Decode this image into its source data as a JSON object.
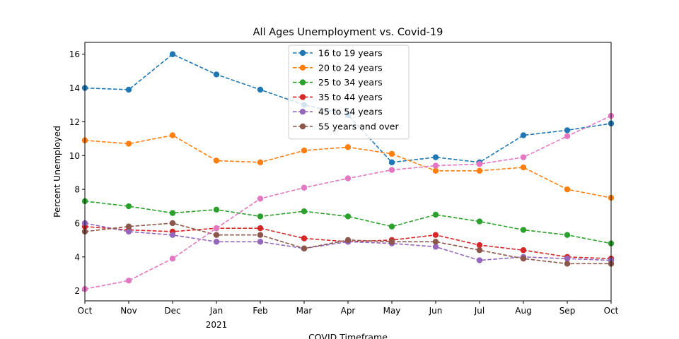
{
  "chart_data": {
    "type": "line",
    "title": "All Ages Unemployment vs. Covid-19",
    "xlabel": "COVID Timeframe",
    "ylabel": "Percent Unemployed",
    "x": [
      "Oct",
      "Nov",
      "Dec",
      "Jan",
      "Feb",
      "Mar",
      "Apr",
      "May",
      "Jun",
      "Jul",
      "Aug",
      "Sep",
      "Oct"
    ],
    "x_sublabels": {
      "3": "2021"
    },
    "yticks": [
      2,
      4,
      6,
      8,
      10,
      12,
      14,
      16
    ],
    "ylim": [
      1.4,
      16.7
    ],
    "grid": false,
    "legend_position": "top-center",
    "series": [
      {
        "name": "16 to 19 years",
        "color": "#1f77b4",
        "values": [
          14.0,
          13.9,
          16.0,
          14.8,
          13.9,
          13.0,
          12.4,
          9.6,
          9.9,
          9.6,
          11.2,
          11.5,
          11.9
        ]
      },
      {
        "name": "20 to 24 years",
        "color": "#ff7f0e",
        "values": [
          10.9,
          10.7,
          11.2,
          9.7,
          9.6,
          10.3,
          10.5,
          10.1,
          9.1,
          9.1,
          9.3,
          8.0,
          7.5
        ]
      },
      {
        "name": "25 to 34 years",
        "color": "#2ca02c",
        "values": [
          7.3,
          7.0,
          6.6,
          6.8,
          6.4,
          6.7,
          6.4,
          5.8,
          6.5,
          6.1,
          5.6,
          5.3,
          4.8
        ]
      },
      {
        "name": "35 to 44 years",
        "color": "#d62728",
        "values": [
          5.8,
          5.6,
          5.5,
          5.7,
          5.7,
          5.1,
          4.9,
          5.0,
          5.3,
          4.7,
          4.4,
          4.0,
          3.9
        ]
      },
      {
        "name": "45 to 54 years",
        "color": "#9467bd",
        "values": [
          6.0,
          5.5,
          5.3,
          4.9,
          4.9,
          4.5,
          4.9,
          4.8,
          4.6,
          3.8,
          4.0,
          3.9,
          3.8
        ]
      },
      {
        "name": "55 years and over",
        "color": "#8c564b",
        "values": [
          5.5,
          5.8,
          6.0,
          5.3,
          5.3,
          4.5,
          5.0,
          4.9,
          4.9,
          4.4,
          3.9,
          3.6,
          3.6
        ]
      },
      {
        "name": "",
        "color": "#e377c2",
        "in_legend": false,
        "values": [
          2.1,
          2.6,
          3.9,
          5.7,
          7.45,
          8.1,
          8.65,
          9.15,
          9.4,
          9.5,
          9.9,
          11.15,
          12.35
        ]
      }
    ]
  }
}
